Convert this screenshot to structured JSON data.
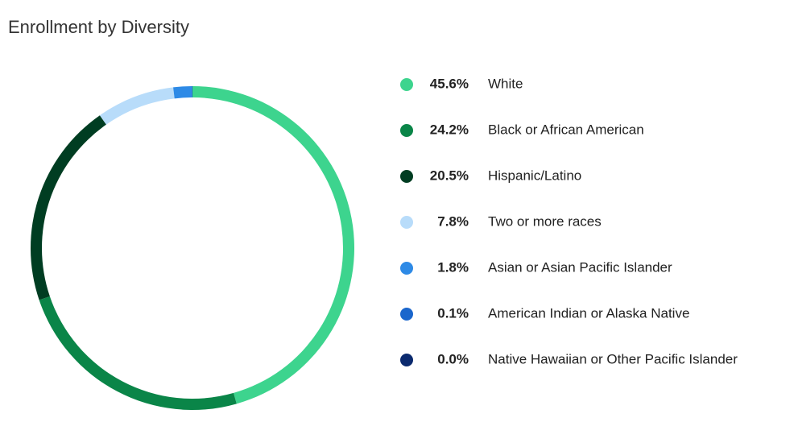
{
  "chart_data": {
    "type": "donut",
    "title": "Enrollment by Diversity",
    "categories": [
      "White",
      "Black or African American",
      "Hispanic/Latino",
      "Two or more races",
      "Asian or Asian Pacific Islander",
      "American Indian or Alaska Native",
      "Native Hawaiian or Other Pacific Islander"
    ],
    "values": [
      45.6,
      24.2,
      20.5,
      7.8,
      1.8,
      0.1,
      0.0
    ],
    "value_labels": [
      "45.6%",
      "24.2%",
      "20.5%",
      "7.8%",
      "1.8%",
      "0.1%",
      "0.0%"
    ],
    "colors": [
      "#3dd48e",
      "#0a8548",
      "#003d22",
      "#b8dcfa",
      "#2e8ae6",
      "#1a66cc",
      "#0b2a6e"
    ],
    "legend": "right"
  }
}
